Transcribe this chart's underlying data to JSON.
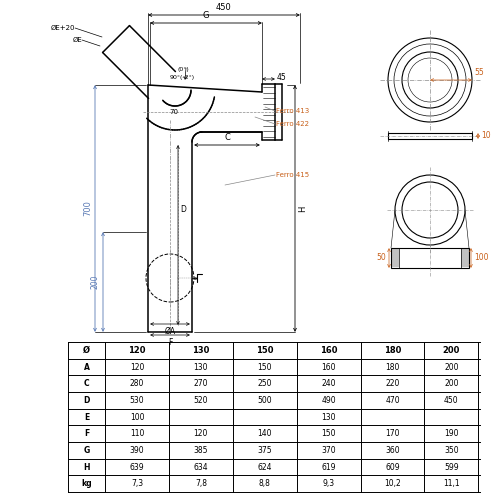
{
  "table_headers": [
    "Ø",
    "120",
    "130",
    "150",
    "160",
    "180",
    "200"
  ],
  "table_rows": [
    [
      "A",
      "120",
      "130",
      "150",
      "160",
      "180",
      "200"
    ],
    [
      "C",
      "280",
      "270",
      "250",
      "240",
      "220",
      "200"
    ],
    [
      "D",
      "530",
      "520",
      "500",
      "490",
      "470",
      "450"
    ],
    [
      "E",
      "100",
      "",
      "",
      "130",
      "",
      ""
    ],
    [
      "F",
      "110",
      "120",
      "140",
      "150",
      "170",
      "190"
    ],
    [
      "G",
      "390",
      "385",
      "375",
      "370",
      "360",
      "350"
    ],
    [
      "H",
      "639",
      "634",
      "624",
      "619",
      "609",
      "599"
    ],
    [
      "kg",
      "7,3",
      "7,8",
      "8,8",
      "9,3",
      "10,2",
      "11,1"
    ]
  ],
  "bg_color": "#ffffff",
  "line_color": "#000000",
  "dim_color": "#5a7ab5",
  "orange_color": "#c8601a"
}
